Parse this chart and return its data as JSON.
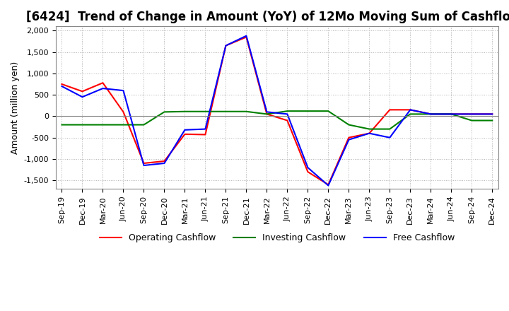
{
  "title": "[6424]  Trend of Change in Amount (YoY) of 12Mo Moving Sum of Cashflows",
  "ylabel": "Amount (million yen)",
  "ylim": [
    -1700,
    2100
  ],
  "yticks": [
    -1500,
    -1000,
    -500,
    0,
    500,
    1000,
    1500,
    2000
  ],
  "x_labels": [
    "Sep-19",
    "Dec-19",
    "Mar-20",
    "Jun-20",
    "Sep-20",
    "Dec-20",
    "Mar-21",
    "Jun-21",
    "Sep-21",
    "Dec-21",
    "Mar-22",
    "Jun-22",
    "Sep-22",
    "Dec-22",
    "Mar-23",
    "Jun-23",
    "Sep-23",
    "Dec-23",
    "Mar-24",
    "Jun-24",
    "Sep-24",
    "Dec-24"
  ],
  "operating": [
    750,
    580,
    780,
    100,
    -1100,
    -1050,
    -420,
    -430,
    1650,
    1850,
    50,
    -100,
    -1300,
    -1600,
    -500,
    -400,
    150,
    150,
    50,
    50,
    50,
    50
  ],
  "investing": [
    -200,
    -200,
    -200,
    -200,
    -200,
    100,
    110,
    110,
    110,
    110,
    50,
    120,
    120,
    120,
    -200,
    -300,
    -300,
    50,
    50,
    50,
    -100,
    -100
  ],
  "free": [
    700,
    450,
    650,
    600,
    -1150,
    -1100,
    -320,
    -300,
    1650,
    1880,
    100,
    50,
    -1200,
    -1620,
    -550,
    -400,
    -500,
    150,
    50,
    50,
    50,
    50
  ],
  "operating_color": "#ff0000",
  "investing_color": "#008000",
  "free_color": "#0000ff",
  "background_color": "#ffffff",
  "grid_color": "#b0b0b0",
  "title_fontsize": 12,
  "label_fontsize": 9,
  "tick_fontsize": 8,
  "legend_fontsize": 9
}
